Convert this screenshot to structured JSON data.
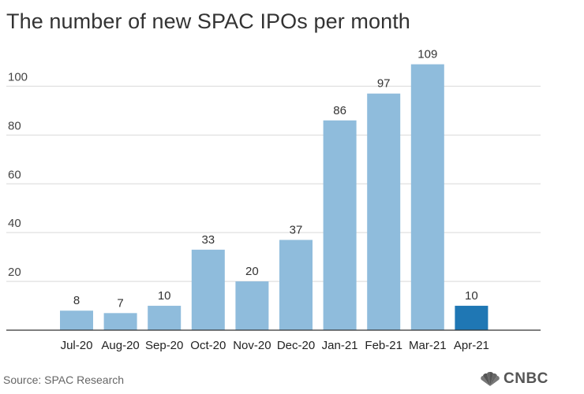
{
  "page": {
    "title": "The number of new SPAC IPOs per month",
    "source": "Source: SPAC Research",
    "logo_text": "CNBC",
    "logo_icon": "peacock-icon"
  },
  "colors": {
    "bar": "#8fbcdc",
    "bar_highlight": "#1f77b4",
    "grid": "#d9d9d9",
    "axis": "#333333"
  },
  "chart_data": {
    "type": "bar",
    "title": "The number of new SPAC IPOs per month",
    "xlabel": "",
    "ylabel": "",
    "categories": [
      "Jul-20",
      "Aug-20",
      "Sep-20",
      "Oct-20",
      "Nov-20",
      "Dec-20",
      "Jan-21",
      "Feb-21",
      "Mar-21",
      "Apr-21"
    ],
    "values": [
      8,
      7,
      10,
      33,
      20,
      37,
      86,
      97,
      109,
      10
    ],
    "highlight": [
      "Apr-21"
    ],
    "yticks": [
      20,
      40,
      60,
      80,
      100
    ],
    "ylim": [
      0,
      115
    ],
    "grid": true,
    "legend": "none"
  }
}
